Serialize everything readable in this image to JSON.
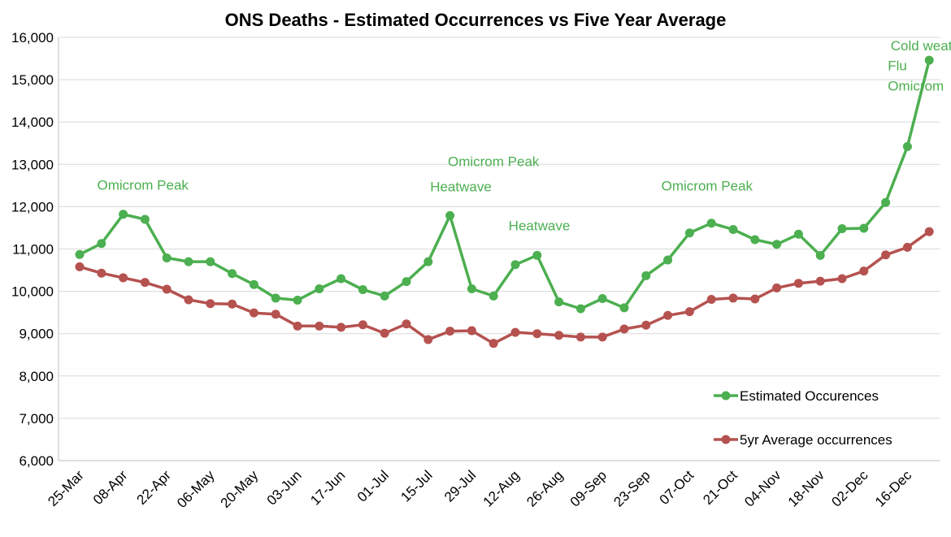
{
  "chart_data": {
    "type": "line",
    "title": "ONS Deaths - Estimated Occurrences vs Five Year Average",
    "xlabel": "",
    "ylabel": "",
    "ylim": [
      6000,
      16000
    ],
    "yticks": [
      6000,
      7000,
      8000,
      9000,
      10000,
      11000,
      12000,
      13000,
      14000,
      15000,
      16000
    ],
    "ytick_labels": [
      "6,000",
      "7,000",
      "8,000",
      "9,000",
      "10,000",
      "11,000",
      "12,000",
      "13,000",
      "14,000",
      "15,000",
      "16,000"
    ],
    "x_tick_labels": [
      "25-Mar",
      "08-Apr",
      "22-Apr",
      "06-May",
      "20-May",
      "03-Jun",
      "17-Jun",
      "01-Jul",
      "15-Jul",
      "29-Jul",
      "12-Aug",
      "26-Aug",
      "09-Sep",
      "23-Sep",
      "07-Oct",
      "21-Oct",
      "04-Nov",
      "18-Nov",
      "02-Dec",
      "16-Dec"
    ],
    "grid": "horizontal",
    "legend_position": "bottom-right",
    "colors": {
      "estimated": "#4caf50",
      "average": "#b5524f",
      "annotation": "#4caf50",
      "grid": "#d9d9d9"
    },
    "series": [
      {
        "name": "Estimated Occurences",
        "color": "#4caf50",
        "values": [
          10870,
          11130,
          11820,
          11700,
          10790,
          10700,
          10700,
          10420,
          10160,
          9840,
          9790,
          10060,
          10300,
          10040,
          9890,
          10230,
          10700,
          11790,
          10060,
          9890,
          10630,
          10850,
          9750,
          9590,
          9830,
          9610,
          10370,
          10740,
          11380,
          11610,
          11460,
          11220,
          11110,
          11350,
          10850,
          11480,
          11490,
          12100,
          13420,
          15460
        ]
      },
      {
        "name": "5yr Average occurrences",
        "color": "#b5524f",
        "values": [
          10580,
          10430,
          10320,
          10210,
          10050,
          9800,
          9710,
          9700,
          9490,
          9460,
          9180,
          9180,
          9150,
          9210,
          9010,
          9230,
          8860,
          9060,
          9070,
          8770,
          9030,
          9000,
          8960,
          8920,
          8920,
          9110,
          9200,
          9430,
          9520,
          9810,
          9840,
          9820,
          10080,
          10190,
          10240,
          10300,
          10480,
          10860,
          11040,
          11410
        ]
      }
    ],
    "annotations": [
      {
        "text": "Omicrom Peak",
        "index": 2.9,
        "value": 12400
      },
      {
        "text": "Omicrom Peak",
        "index": 19.0,
        "value": 12960
      },
      {
        "text": "Heatwave",
        "index": 17.5,
        "value": 12360
      },
      {
        "text": "Heatwave",
        "index": 21.1,
        "value": 11440
      },
      {
        "text": "Omicrom Peak",
        "index": 28.8,
        "value": 12380
      },
      {
        "text": "Cold weather",
        "index": 39.1,
        "value": 15690,
        "anchor": "middle"
      },
      {
        "text": "Flu",
        "index": 37.1,
        "value": 15220,
        "anchor": "start"
      },
      {
        "text": "Omicrom",
        "index": 37.1,
        "value": 14740,
        "anchor": "start"
      }
    ]
  }
}
